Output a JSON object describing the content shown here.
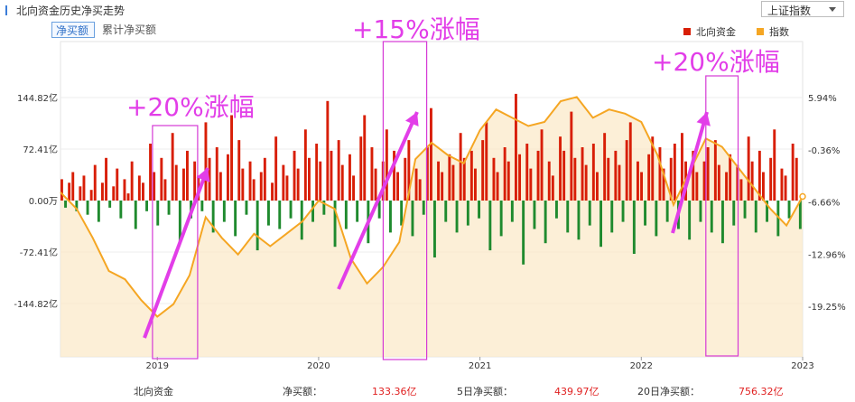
{
  "header": {
    "title": "北向资金历史净买走势",
    "index_select": "上证指数"
  },
  "tabs": [
    {
      "label": "净买额",
      "active": true
    },
    {
      "label": "累计净买额",
      "active": false
    }
  ],
  "legend": [
    {
      "label": "北向资金",
      "color": "#d81e06"
    },
    {
      "label": "指数",
      "color": "#f5a623"
    }
  ],
  "annotations": [
    "+20%涨幅",
    "+15%涨幅",
    "+20%涨幅"
  ],
  "footer": {
    "name": "北向资金",
    "net_label": "净买额：",
    "net_value": "133.36亿",
    "d5_label": "5日净买额：",
    "d5_value": "439.97亿",
    "d20_label": "20日净买额：",
    "d20_value": "756.32亿"
  },
  "chart_data": {
    "type": "bar+line",
    "x_ticks": [
      "2019",
      "2020",
      "2021",
      "2022",
      "2023"
    ],
    "y_left": {
      "ticks": [
        "144.82亿",
        "72.41亿",
        "0.00万",
        "-72.41亿",
        "-144.82亿"
      ],
      "values": [
        144.82,
        72.41,
        0,
        -72.41,
        -144.82
      ],
      "unit": "亿"
    },
    "y_right": {
      "ticks": [
        "5.94%",
        "-0.36%",
        "-6.66%",
        "-12.96%",
        "-19.25%"
      ],
      "values": [
        5.94,
        -0.36,
        -6.66,
        -12.96,
        -19.25
      ],
      "unit": "%"
    },
    "series": [
      {
        "name": "北向资金",
        "kind": "bar",
        "color_positive": "#d81e06",
        "color_negative": "#1f8a2e",
        "x_start": 2018.4,
        "x_end": 2023.0,
        "values": [
          30,
          -10,
          25,
          40,
          -15,
          20,
          35,
          -20,
          15,
          50,
          -30,
          25,
          60,
          -10,
          20,
          45,
          -25,
          30,
          10,
          55,
          -40,
          35,
          25,
          -15,
          80,
          40,
          -35,
          60,
          30,
          -20,
          95,
          50,
          -60,
          45,
          70,
          -25,
          55,
          35,
          -15,
          110,
          60,
          -45,
          75,
          40,
          -30,
          65,
          120,
          -50,
          85,
          45,
          -20,
          55,
          30,
          -70,
          40,
          60,
          -35,
          25,
          90,
          -40,
          50,
          35,
          -25,
          70,
          45,
          -55,
          100,
          60,
          -30,
          80,
          55,
          -20,
          140,
          70,
          -65,
          85,
          50,
          -40,
          65,
          35,
          -30,
          90,
          120,
          -60,
          75,
          45,
          -25,
          55,
          100,
          -45,
          70,
          40,
          -35,
          60,
          85,
          -50,
          45,
          30,
          -20,
          75,
          130,
          -80,
          55,
          40,
          -30,
          65,
          50,
          -45,
          95,
          60,
          -35,
          70,
          45,
          -25,
          85,
          110,
          -70,
          60,
          40,
          -50,
          75,
          55,
          -30,
          150,
          65,
          -90,
          80,
          45,
          -40,
          70,
          100,
          -60,
          55,
          35,
          -25,
          90,
          70,
          -45,
          125,
          60,
          -55,
          75,
          50,
          -35,
          80,
          40,
          -65,
          95,
          60,
          -45,
          70,
          50,
          -30,
          85,
          110,
          -75,
          55,
          40,
          -35,
          65,
          90,
          -50,
          75,
          45,
          -30,
          60,
          80,
          -40,
          95,
          55,
          -55,
          70,
          40,
          -30,
          55,
          75,
          -45,
          85,
          50,
          -60,
          40,
          65,
          -35,
          50,
          30,
          -25,
          90,
          55,
          -45,
          70,
          40,
          -30,
          60,
          100,
          -50,
          45,
          35,
          -25,
          80,
          60,
          -40
        ]
      },
      {
        "name": "指数",
        "kind": "line",
        "color": "#f5a623",
        "x": [
          2018.4,
          2018.5,
          2018.6,
          2018.7,
          2018.8,
          2018.9,
          2019.0,
          2019.1,
          2019.2,
          2019.3,
          2019.4,
          2019.5,
          2019.6,
          2019.7,
          2019.8,
          2019.9,
          2020.0,
          2020.1,
          2020.2,
          2020.3,
          2020.4,
          2020.5,
          2020.6,
          2020.7,
          2020.8,
          2020.9,
          2021.0,
          2021.1,
          2021.2,
          2021.3,
          2021.4,
          2021.5,
          2021.6,
          2021.7,
          2021.8,
          2021.9,
          2022.0,
          2022.1,
          2022.2,
          2022.3,
          2022.4,
          2022.5,
          2022.6,
          2022.7,
          2022.8,
          2022.9,
          2023.0
        ],
        "y": [
          -5.5,
          -7.5,
          -11.0,
          -15.0,
          -16.0,
          -18.5,
          -20.5,
          -19.0,
          -15.5,
          -8.5,
          -11.0,
          -13.0,
          -10.5,
          -12.0,
          -10.5,
          -9.0,
          -6.5,
          -7.5,
          -13.5,
          -16.5,
          -14.5,
          -11.5,
          -1.5,
          0.5,
          -1.0,
          -2.0,
          2.0,
          4.5,
          3.5,
          2.5,
          3.0,
          5.5,
          6.0,
          3.5,
          4.5,
          4.0,
          3.0,
          -1.0,
          -7.0,
          -3.0,
          1.0,
          0.0,
          -2.5,
          -5.0,
          -7.5,
          -9.5,
          -6.0
        ]
      }
    ]
  }
}
